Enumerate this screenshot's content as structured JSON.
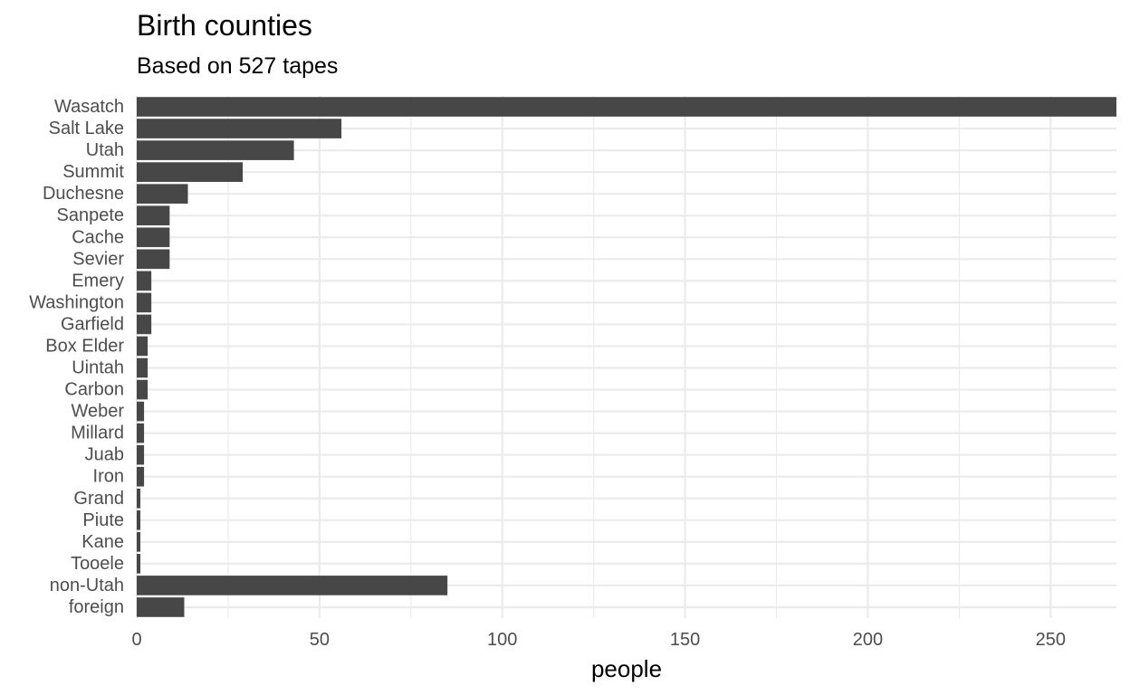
{
  "chart_data": {
    "type": "bar",
    "orientation": "horizontal",
    "title": "Birth counties",
    "subtitle": "Based on 527 tapes",
    "xlabel": "people",
    "ylabel": "",
    "categories": [
      "Wasatch",
      "Salt Lake",
      "Utah",
      "Summit",
      "Duchesne",
      "Sanpete",
      "Cache",
      "Sevier",
      "Emery",
      "Washington",
      "Garfield",
      "Box Elder",
      "Uintah",
      "Carbon",
      "Weber",
      "Millard",
      "Juab",
      "Iron",
      "Grand",
      "Piute",
      "Kane",
      "Tooele",
      "non-Utah",
      "foreign"
    ],
    "values": [
      268,
      56,
      43,
      29,
      14,
      9,
      9,
      9,
      4,
      4,
      4,
      3,
      3,
      3,
      2,
      2,
      2,
      2,
      1,
      1,
      1,
      1,
      85,
      13
    ],
    "xlim": [
      0,
      268
    ],
    "xticks": [
      0,
      50,
      100,
      150,
      200,
      250
    ],
    "grid": true,
    "legend": "none",
    "bar_color": "#474747",
    "grid_color": "#ebebeb"
  }
}
